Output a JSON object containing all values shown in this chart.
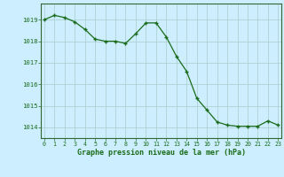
{
  "x": [
    0,
    1,
    2,
    3,
    4,
    5,
    6,
    7,
    8,
    9,
    10,
    11,
    12,
    13,
    14,
    15,
    16,
    17,
    18,
    19,
    20,
    21,
    22,
    23
  ],
  "y": [
    1019.0,
    1019.2,
    1019.1,
    1018.9,
    1018.55,
    1018.1,
    1018.0,
    1018.0,
    1017.9,
    1018.35,
    1018.85,
    1018.85,
    1018.2,
    1017.3,
    1016.6,
    1015.35,
    1014.8,
    1014.25,
    1014.1,
    1014.05,
    1014.05,
    1014.05,
    1014.3,
    1014.1
  ],
  "line_color": "#1a6b1a",
  "marker_color": "#1a6b1a",
  "bg_color": "#cceeff",
  "grid_color": "#aacccc",
  "xlabel": "Graphe pression niveau de la mer (hPa)",
  "xlabel_color": "#1a6b1a",
  "tick_color": "#1a6b1a",
  "ylim": [
    1013.5,
    1019.75
  ],
  "yticks": [
    1014,
    1015,
    1016,
    1017,
    1018,
    1019
  ],
  "xticks": [
    0,
    1,
    2,
    3,
    4,
    5,
    6,
    7,
    8,
    9,
    10,
    11,
    12,
    13,
    14,
    15,
    16,
    17,
    18,
    19,
    20,
    21,
    22,
    23
  ],
  "spine_color": "#336633"
}
